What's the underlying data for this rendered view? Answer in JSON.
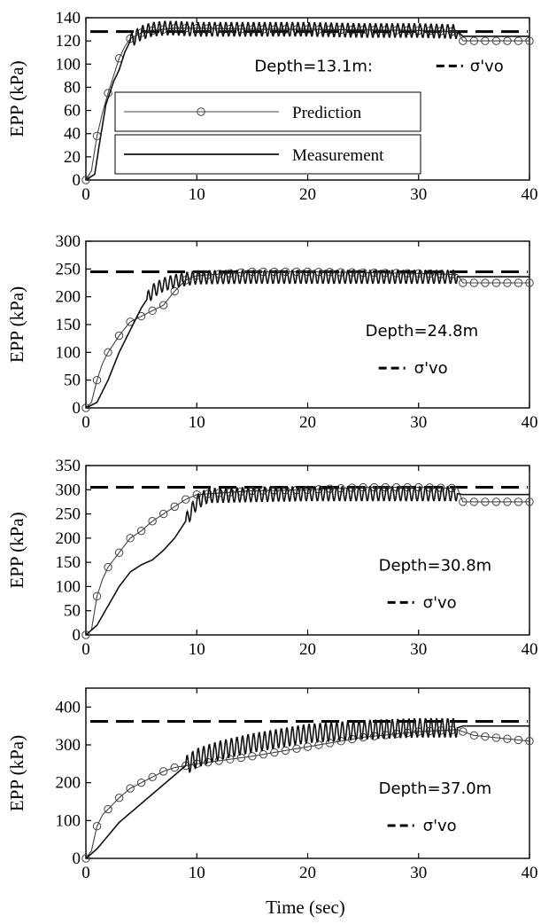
{
  "figure": {
    "x_axis_label": "Time (sec)"
  },
  "colors": {
    "measurement": "#111111",
    "prediction": "#444444",
    "sigma": "#000000"
  },
  "legend": [
    {
      "label": "Prediction",
      "marker": "circle"
    },
    {
      "label": "Measurement",
      "marker": "none"
    }
  ],
  "chart_data": [
    {
      "type": "line",
      "ylabel": "EPP (kPa)",
      "xlabel": "",
      "xlim": [
        0,
        40
      ],
      "ylim": [
        0,
        140
      ],
      "xticks": [
        0,
        10,
        20,
        30,
        40
      ],
      "yticks": [
        0,
        20,
        40,
        60,
        80,
        100,
        120,
        140
      ],
      "depth_label": "Depth=13.1m:",
      "sigma_label": "σ'vo",
      "sigma_vo": 128,
      "measurement": {
        "name": "Measurement",
        "x": [
          0,
          0.8,
          1.2,
          1.8,
          2.5,
          3,
          3.5,
          4,
          5,
          6,
          7,
          8,
          10,
          15,
          20,
          25,
          30,
          33.5,
          34,
          40
        ],
        "y": [
          0,
          5,
          30,
          65,
          85,
          95,
          110,
          120,
          127,
          130,
          131,
          131,
          130,
          130,
          130,
          129,
          129,
          128,
          124,
          124
        ],
        "oscillation_start": 4,
        "oscillation_end": 33.5,
        "oscillation_amplitude": 6
      },
      "prediction": {
        "name": "Prediction",
        "x": [
          0,
          0.5,
          1,
          1.5,
          2,
          2.5,
          3,
          3.5,
          4,
          5,
          6,
          8,
          10,
          15,
          20,
          30,
          33.5,
          34,
          40
        ],
        "y": [
          0,
          8,
          38,
          58,
          75,
          90,
          105,
          115,
          122,
          127,
          129,
          131,
          131,
          130,
          130,
          129,
          128,
          120,
          120
        ]
      }
    },
    {
      "type": "line",
      "ylabel": "EPP (kPa)",
      "xlabel": "",
      "xlim": [
        0,
        40
      ],
      "ylim": [
        0,
        300
      ],
      "xticks": [
        0,
        10,
        20,
        30,
        40
      ],
      "yticks": [
        0,
        50,
        100,
        150,
        200,
        250,
        300
      ],
      "depth_label": "Depth=24.8m",
      "sigma_label": "σ'vo",
      "sigma_vo": 245,
      "measurement": {
        "name": "Measurement",
        "x": [
          0,
          1,
          2,
          3,
          4,
          5,
          6,
          7,
          8,
          9,
          10,
          15,
          20,
          25,
          30,
          33.5,
          34,
          40
        ],
        "y": [
          0,
          10,
          50,
          100,
          140,
          180,
          210,
          222,
          228,
          232,
          235,
          236,
          236,
          236,
          236,
          236,
          236,
          236
        ],
        "oscillation_start": 5.5,
        "oscillation_end": 33.5,
        "oscillation_amplitude": 12
      },
      "prediction": {
        "name": "Prediction",
        "x": [
          0,
          0.5,
          1,
          1.5,
          2,
          3,
          4,
          5,
          6,
          7,
          8,
          9,
          10,
          15,
          20,
          30,
          33.5,
          34,
          40
        ],
        "y": [
          0,
          10,
          50,
          80,
          100,
          130,
          155,
          165,
          175,
          185,
          210,
          230,
          238,
          245,
          245,
          242,
          240,
          225,
          225
        ]
      }
    },
    {
      "type": "line",
      "ylabel": "EPP (kPa)",
      "xlabel": "",
      "xlim": [
        0,
        40
      ],
      "ylim": [
        0,
        350
      ],
      "xticks": [
        0,
        10,
        20,
        30,
        40
      ],
      "yticks": [
        0,
        50,
        100,
        150,
        200,
        250,
        300,
        350
      ],
      "depth_label": "Depth=30.8m",
      "sigma_label": "σ'vo",
      "sigma_vo": 305,
      "measurement": {
        "name": "Measurement",
        "x": [
          0,
          1,
          2,
          3,
          4,
          5,
          6,
          7,
          8,
          9,
          10,
          11,
          15,
          20,
          25,
          30,
          33.5,
          34,
          40
        ],
        "y": [
          0,
          20,
          60,
          100,
          130,
          145,
          155,
          175,
          200,
          235,
          275,
          288,
          290,
          292,
          292,
          292,
          292,
          290,
          290
        ],
        "oscillation_start": 9,
        "oscillation_end": 33.5,
        "oscillation_amplitude": 15
      },
      "prediction": {
        "name": "Prediction",
        "x": [
          0,
          0.5,
          1,
          1.5,
          2,
          3,
          4,
          5,
          6,
          7,
          8,
          9,
          10,
          15,
          20,
          25,
          30,
          33.5,
          34,
          40
        ],
        "y": [
          0,
          10,
          80,
          115,
          140,
          170,
          200,
          215,
          235,
          250,
          265,
          280,
          290,
          298,
          300,
          305,
          305,
          303,
          275,
          275
        ]
      }
    },
    {
      "type": "line",
      "ylabel": "EPP (kPa)",
      "xlabel": "Time (sec)",
      "xlim": [
        0,
        40
      ],
      "ylim": [
        0,
        450
      ],
      "xticks": [
        0,
        10,
        20,
        30,
        40
      ],
      "yticks": [
        0,
        100,
        200,
        300,
        400
      ],
      "depth_label": "Depth=37.0m",
      "sigma_label": "σ'vo",
      "sigma_vo": 362,
      "measurement": {
        "name": "Measurement",
        "x": [
          0,
          1,
          2,
          3,
          4,
          5,
          6,
          7,
          8,
          9,
          10,
          12,
          15,
          18,
          20,
          25,
          30,
          33.5,
          34,
          40
        ],
        "y": [
          0,
          25,
          60,
          95,
          120,
          145,
          170,
          195,
          220,
          245,
          265,
          285,
          305,
          320,
          330,
          340,
          345,
          345,
          350,
          350
        ],
        "oscillation_start": 9,
        "oscillation_end": 33.5,
        "oscillation_amplitude": 25
      },
      "prediction": {
        "name": "Prediction",
        "x": [
          0,
          0.5,
          1,
          1.5,
          2,
          3,
          4,
          5,
          6,
          7,
          8,
          10,
          15,
          20,
          25,
          30,
          33.5,
          35,
          40
        ],
        "y": [
          0,
          20,
          85,
          115,
          130,
          160,
          185,
          200,
          215,
          230,
          240,
          250,
          270,
          295,
          320,
          335,
          340,
          325,
          310
        ]
      }
    }
  ]
}
